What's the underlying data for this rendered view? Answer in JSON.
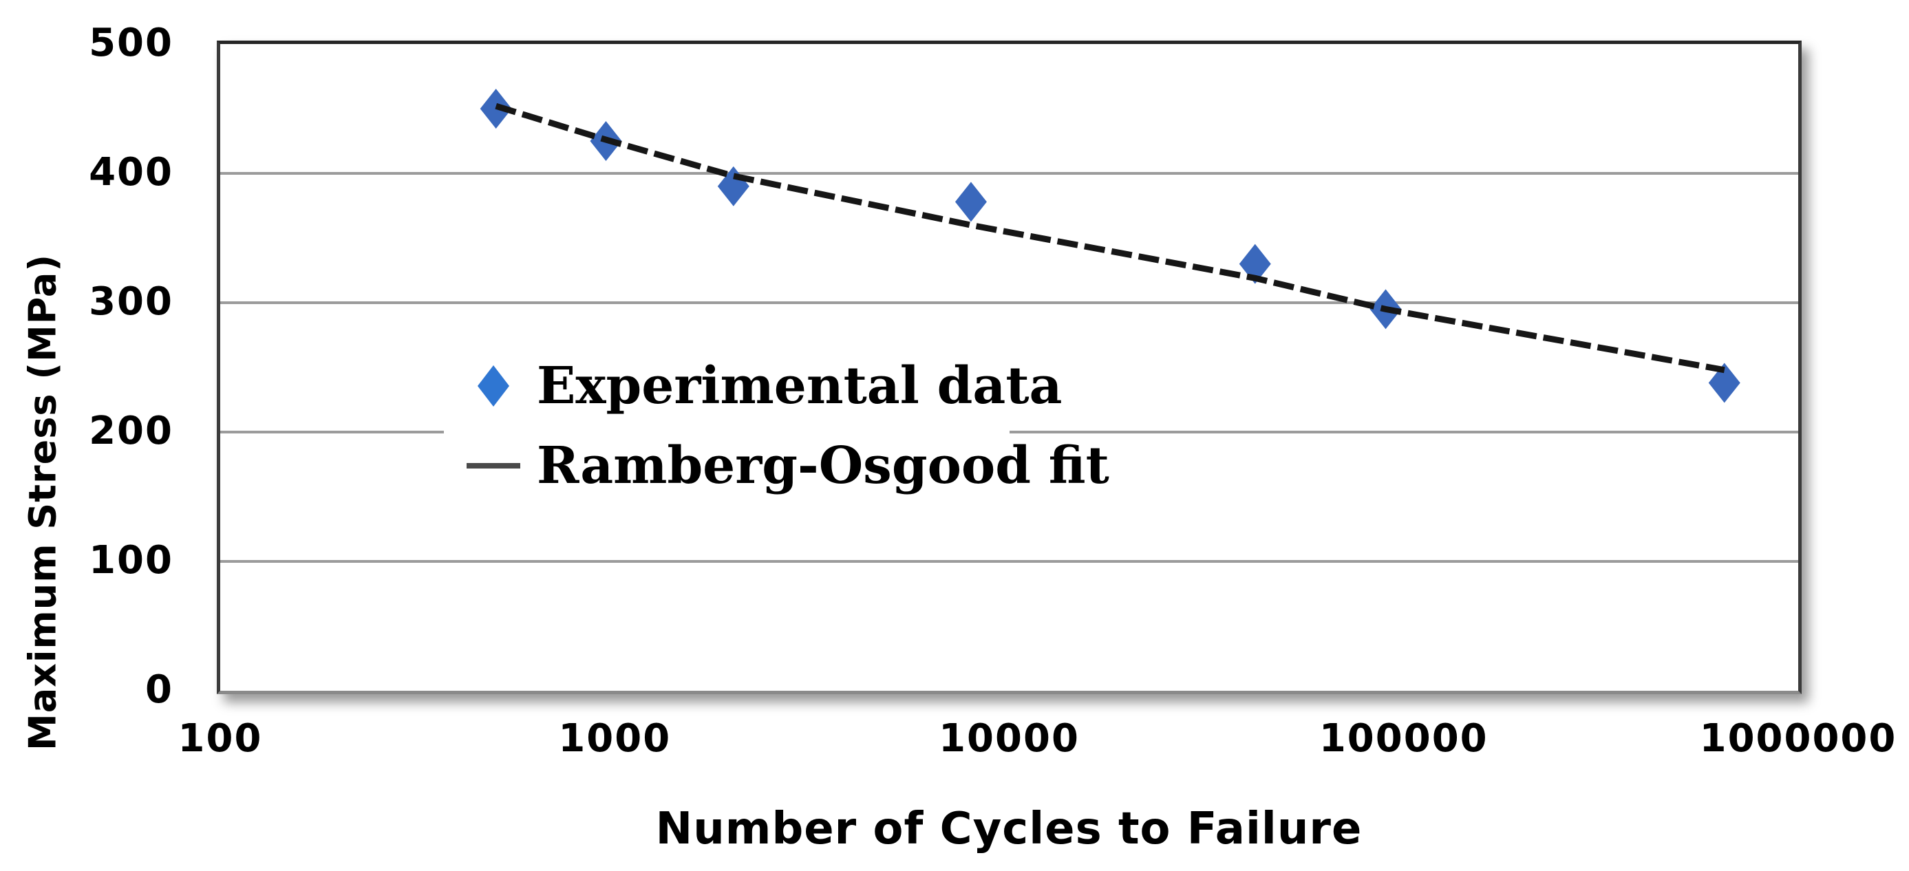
{
  "chart_data": {
    "type": "scatter",
    "title": "",
    "xlabel": "Number of Cycles to Failure",
    "ylabel": "Maximum Stress (MPa)",
    "x_scale": "log",
    "xlim": [
      100,
      1000000
    ],
    "x_ticks": [
      100,
      1000,
      10000,
      100000,
      1000000
    ],
    "x_tick_labels": [
      "100",
      "1000",
      "10000",
      "100000",
      "1000000"
    ],
    "ylim": [
      0,
      500
    ],
    "y_ticks": [
      0,
      100,
      200,
      300,
      400,
      500
    ],
    "grid": "horizontal gridlines only",
    "legend_position": "inside middle-left, white opaque box",
    "series": [
      {
        "name": "Experimental data",
        "type": "scatter",
        "marker": "diamond",
        "color": "#3A68BC",
        "points": [
          [
            500,
            450
          ],
          [
            950,
            425
          ],
          [
            2000,
            390
          ],
          [
            8000,
            378
          ],
          [
            42000,
            330
          ],
          [
            90000,
            295
          ],
          [
            650000,
            238
          ]
        ]
      },
      {
        "name": "Ramberg-Osgood fit",
        "type": "line",
        "color": "#161616",
        "points": [
          [
            500,
            452
          ],
          [
            950,
            426
          ],
          [
            2000,
            398
          ],
          [
            8000,
            360
          ],
          [
            42000,
            319
          ],
          [
            90000,
            295
          ],
          [
            650000,
            248
          ]
        ]
      }
    ]
  },
  "legend": {
    "items": [
      {
        "label": "Experimental data",
        "marker": "diamond",
        "marker_color": "#2F76D2"
      },
      {
        "label": "Ramberg-Osgood fit",
        "marker": "line",
        "marker_color": "#4A4A4A"
      }
    ]
  },
  "colors": {
    "background": "#FFFFFF",
    "gridline": "#9B9B9B",
    "frame": "#3A3A3A",
    "tick_text": "#000000"
  }
}
